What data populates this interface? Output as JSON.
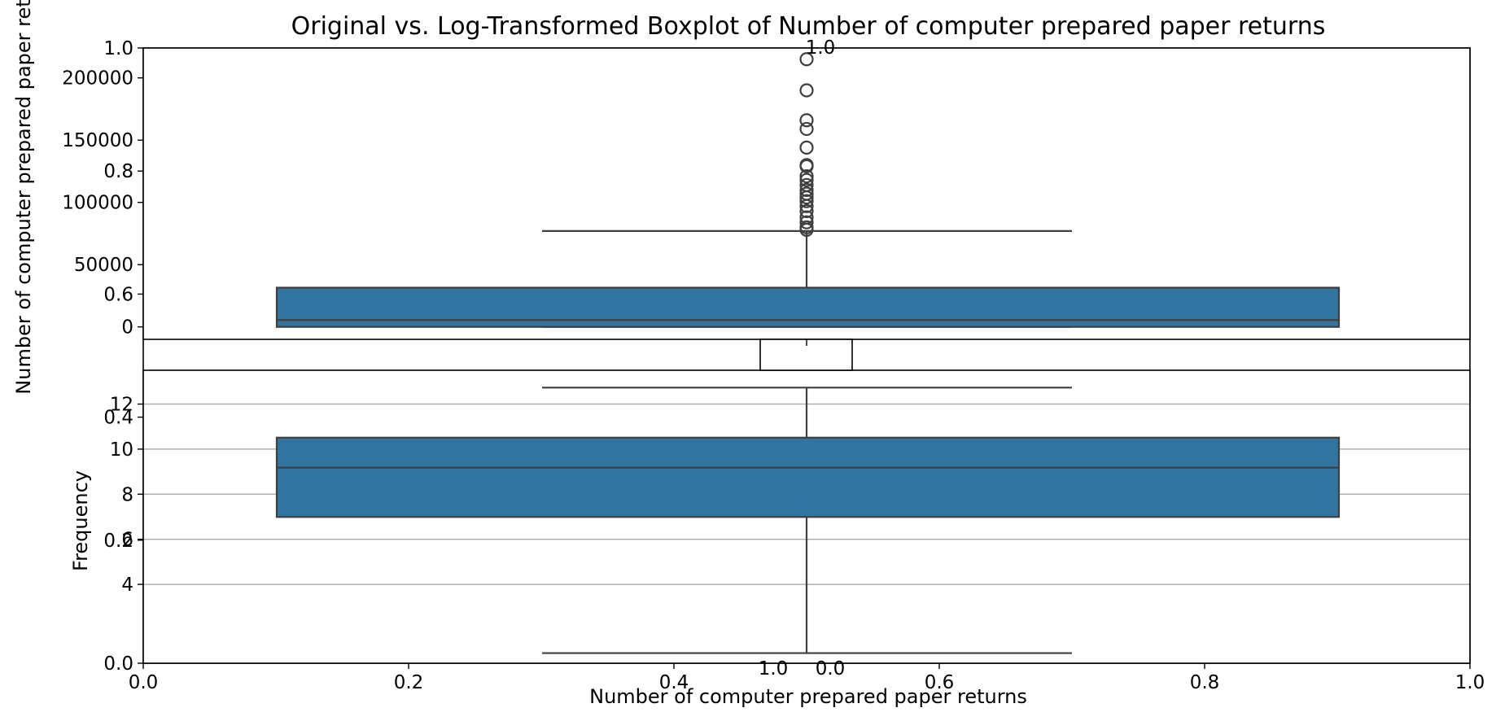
{
  "chart_data": {
    "title": "Original vs. Log-Transformed Boxplot of Number of computer prepared paper returns",
    "xlabel": "Number of computer prepared paper returns",
    "background_axis": {
      "x_ticks": [
        "0.0",
        "0.2",
        "0.4",
        "0.6",
        "0.8",
        "1.0"
      ],
      "y_ticks": [
        "0.0",
        "0.2",
        "0.4",
        "0.6",
        "0.8",
        "1.0"
      ],
      "xlim": [
        0,
        1
      ],
      "ylim": [
        0,
        1
      ]
    },
    "panels": [
      {
        "type": "boxplot",
        "name": "original",
        "ylabel": "Number of computer prepared paper ret",
        "ylim": [
          -10000,
          224000
        ],
        "y_ticks": [
          0,
          50000,
          100000,
          150000,
          200000
        ],
        "y_tick_labels": [
          "0",
          "50000",
          "100000",
          "150000",
          "200000"
        ],
        "x_ticks": [
          "0.0",
          "0.2",
          "0.4",
          "0.6",
          "0.8",
          "1.0"
        ],
        "x_tick_labels_visible": [
          "1.0",
          "0.0"
        ],
        "grid": false,
        "color": "#3274a1",
        "box": {
          "q1": 0,
          "median": 5500,
          "q3": 31500,
          "whisker_low": 0,
          "whisker_high": 77000
        },
        "outliers": [
          78000,
          80000,
          84000,
          88000,
          93000,
          97000,
          101000,
          104000,
          107000,
          110000,
          114000,
          118000,
          121000,
          129000,
          130000,
          144000,
          159000,
          166000,
          190000,
          215000
        ]
      },
      {
        "type": "boxplot",
        "name": "log-transformed",
        "ylabel": "Frequency",
        "ylim": [
          0.5,
          13.5
        ],
        "y_ticks": [
          4,
          6,
          8,
          10,
          12
        ],
        "y_tick_labels": [
          "4",
          "6",
          "8",
          "10",
          "12"
        ],
        "grid": true,
        "color": "#3274a1",
        "box": {
          "q1": 6.99,
          "median": 9.18,
          "q3": 10.51,
          "whisker_low": 0.95,
          "whisker_high": 12.73
        },
        "outliers": []
      }
    ]
  }
}
